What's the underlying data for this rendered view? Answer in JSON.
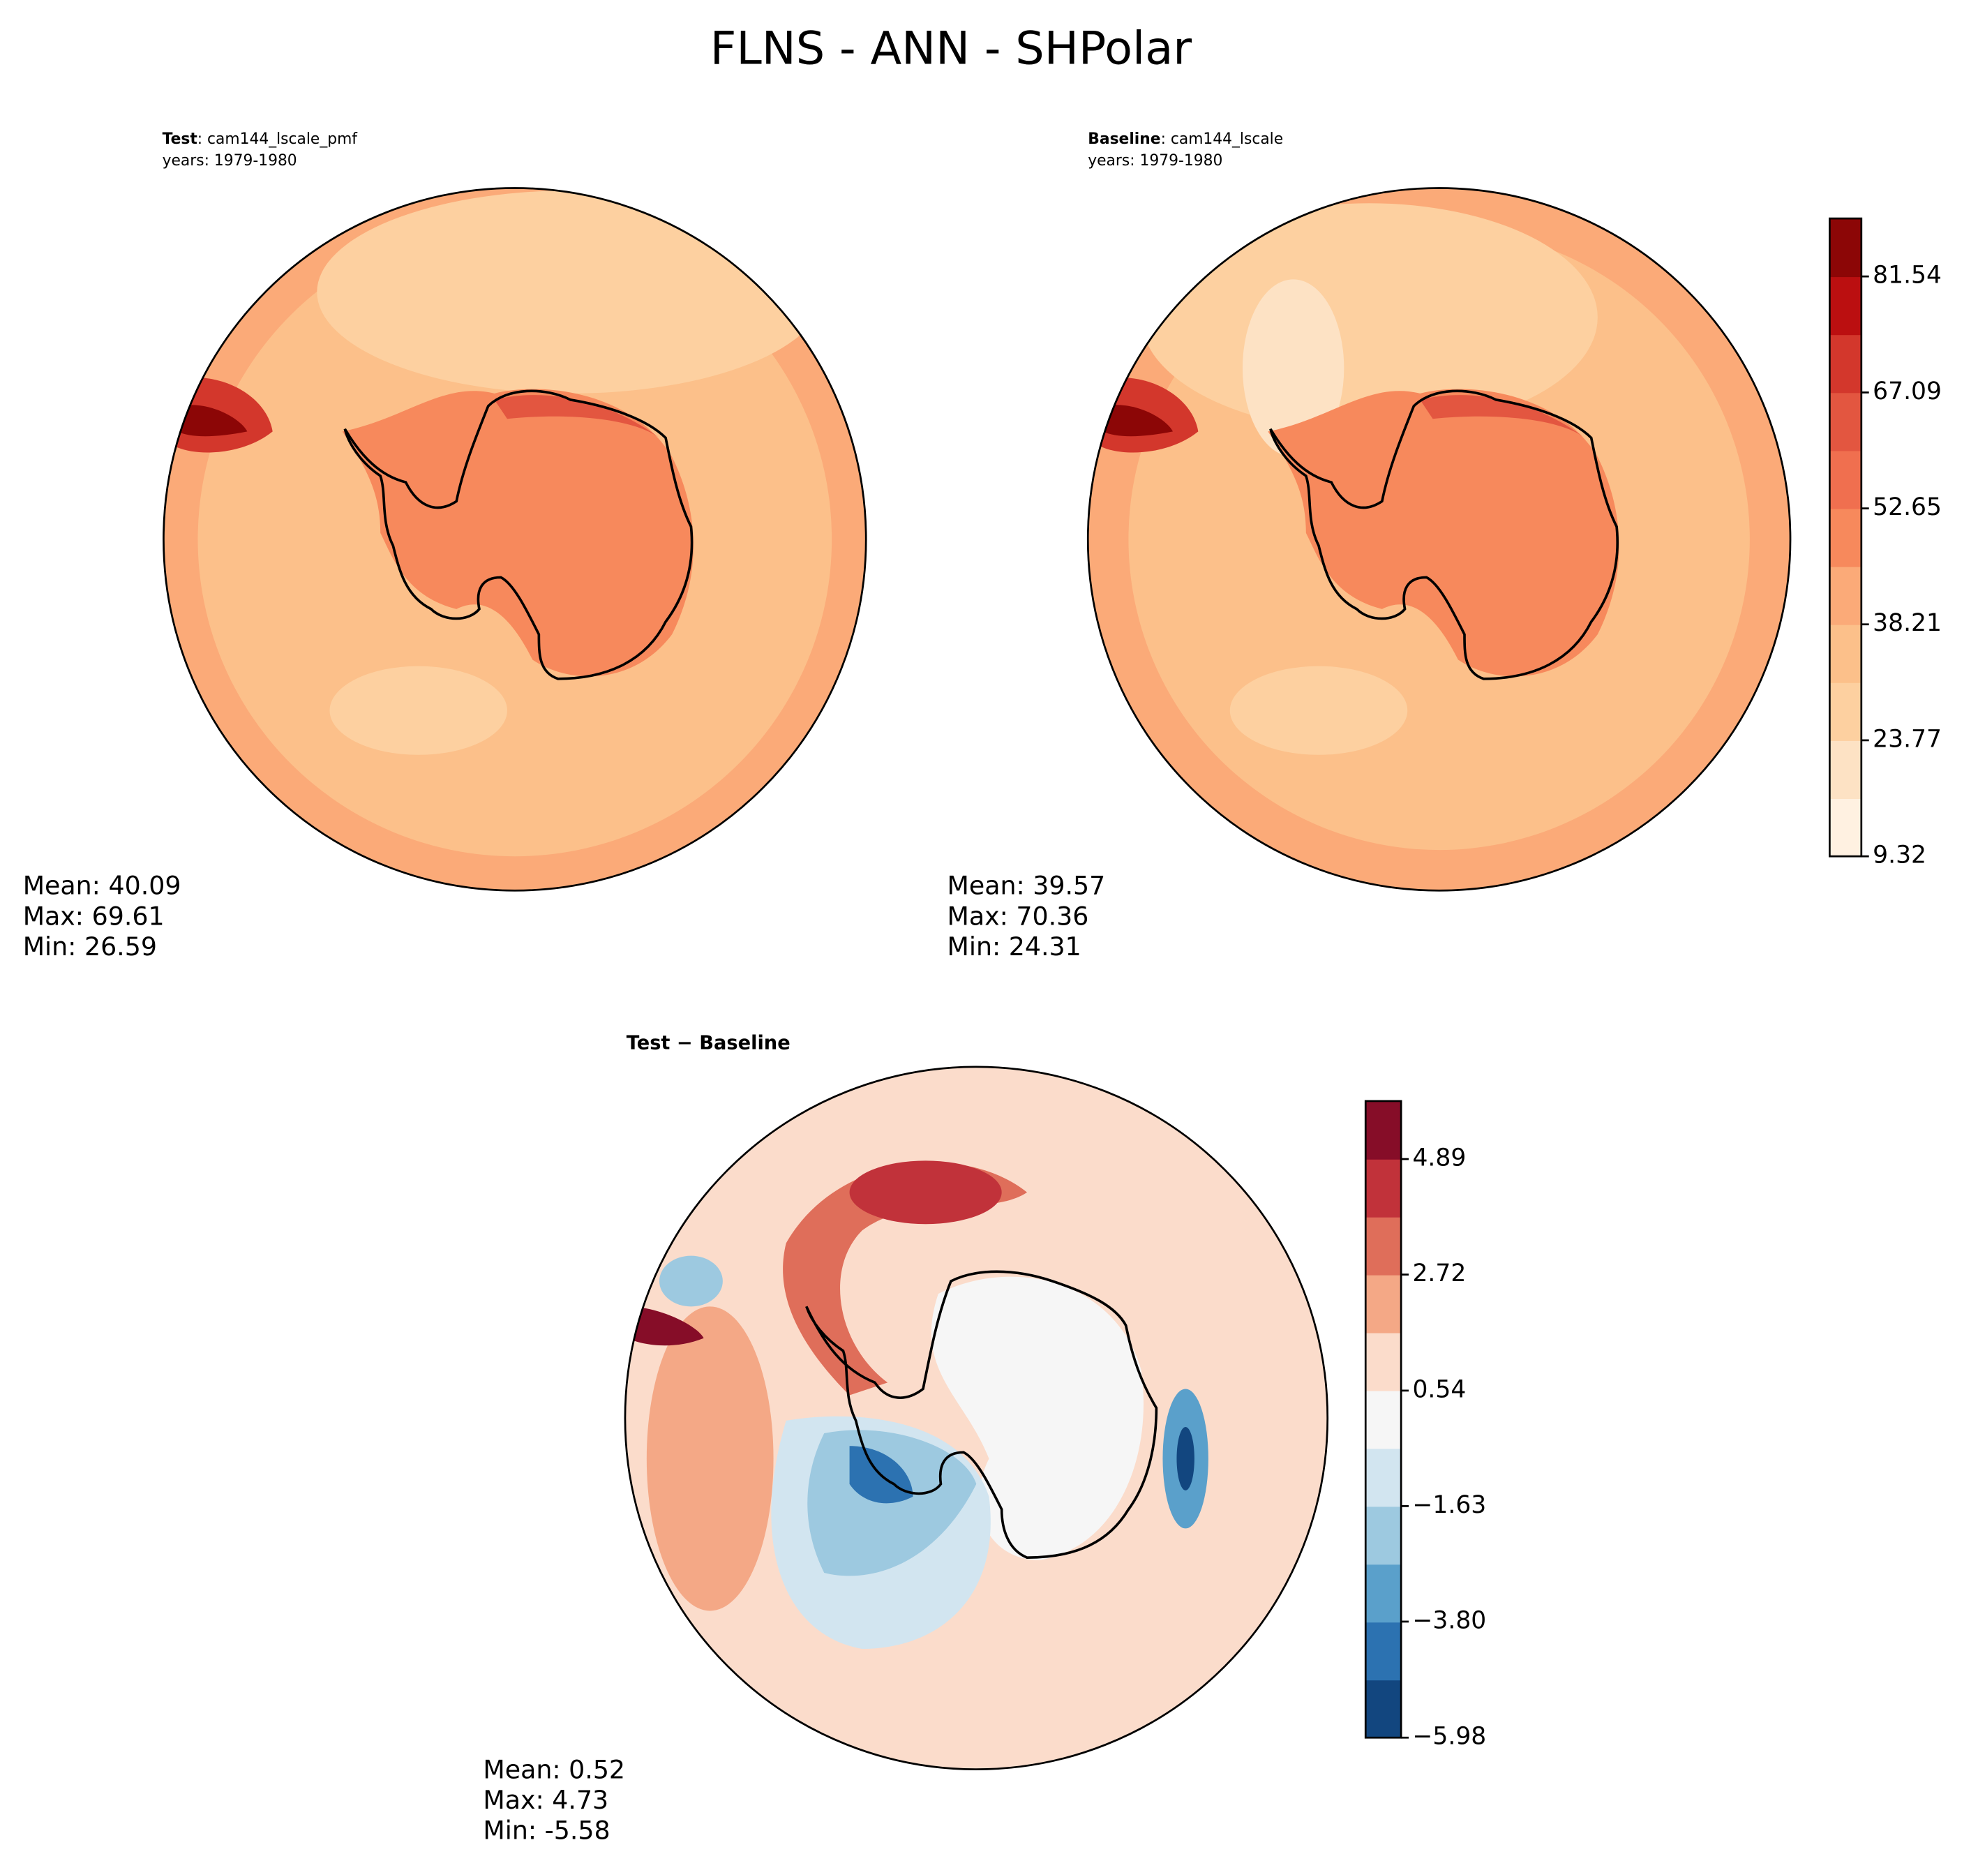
{
  "title": "FLNS - ANN - SHPolar",
  "panels": [
    {
      "label": "Test",
      "caption": ": cam144_lscale_pmf",
      "years": "years: 1979-1980",
      "stats": [
        "Mean: 40.09",
        "Max: 69.61",
        "Min: 26.59"
      ]
    },
    {
      "label": "Baseline",
      "caption": ": cam144_lscale",
      "years": "years: 1979-1980",
      "stats": [
        "Mean: 39.57",
        "Max: 70.36",
        "Min: 24.31"
      ]
    },
    {
      "label": "Test − Baseline",
      "stats": [
        "Mean:  0.52",
        "Max:  4.73",
        "Min: -5.58"
      ]
    }
  ],
  "colorbars": [
    {
      "lim": [
        9.32,
        88.76
      ],
      "ticks": [
        9.32,
        23.77,
        38.21,
        52.65,
        67.09,
        81.54
      ],
      "colors": [
        "#fff1e1",
        "#fde2c4",
        "#fdd0a0",
        "#fcc08a",
        "#fbaa78",
        "#f7895c",
        "#f06f4f",
        "#e35640",
        "#d3372c",
        "#bb0f10",
        "#8c0606"
      ]
    },
    {
      "lim": [
        -5.98,
        5.98
      ],
      "ticks": [
        {
          "value": -5.98,
          "label": "−5.98"
        },
        {
          "value": -3.8,
          "label": "−3.80"
        },
        {
          "value": -1.63,
          "label": "−1.63"
        },
        0.54,
        2.72,
        4.89
      ],
      "colors": [
        "#12467f",
        "#2c72b1",
        "#5aa0cb",
        "#9dc9e0",
        "#d2e5f0",
        "#f6f6f6",
        "#fbdccb",
        "#f4a886",
        "#df6e5a",
        "#c1323a",
        "#860d28"
      ]
    }
  ]
}
